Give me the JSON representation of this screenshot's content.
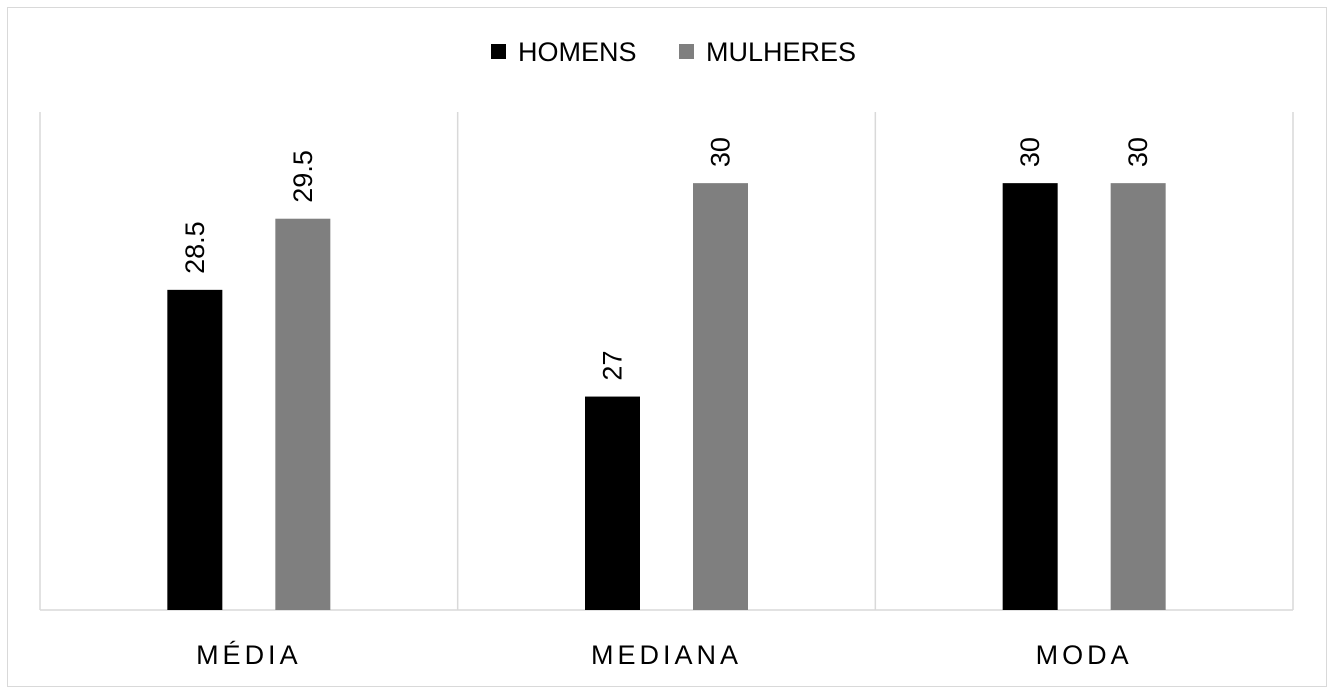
{
  "chart_data": {
    "type": "bar",
    "categories": [
      "MÉDIA",
      "MEDIANA",
      "MODA"
    ],
    "series": [
      {
        "name": "HOMENS",
        "color": "#000000",
        "values": [
          28.5,
          27,
          30
        ]
      },
      {
        "name": "MULHERES",
        "color": "#7f7f7f",
        "values": [
          29.5,
          30,
          30
        ]
      }
    ],
    "data_labels": [
      [
        "28.5",
        "27",
        "30"
      ],
      [
        "29.5",
        "30",
        "30"
      ]
    ],
    "title": "",
    "xlabel": "",
    "ylabel": "",
    "ylim": [
      24,
      31
    ],
    "grid": false,
    "legend_position": "top-center",
    "category_separators": true
  }
}
